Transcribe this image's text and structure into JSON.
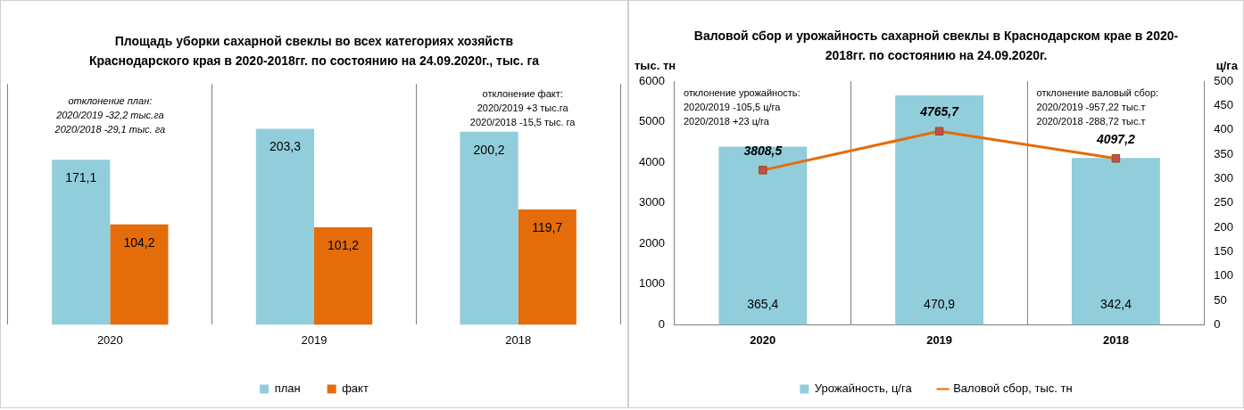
{
  "chart_data": [
    {
      "type": "bar",
      "title": "Площадь уборки сахарной свеклы во всех категориях хозяйств Краснодарского края в 2020-2018гг. по состоянию на 24.09.2020г., тыс. га",
      "categories": [
        "2020",
        "2019",
        "2018"
      ],
      "series": [
        {
          "name": "план",
          "color": "#92cddc",
          "values": [
            171.1,
            203.3,
            200.2
          ],
          "value_labels": [
            "171,1",
            "203,3",
            "200,2"
          ]
        },
        {
          "name": "факт",
          "color": "#e46c0a",
          "values": [
            104.2,
            101.2,
            119.7
          ],
          "value_labels": [
            "104,2",
            "101,2",
            "119,7"
          ]
        }
      ],
      "grid": "x",
      "legend": "bottom",
      "tick_labels": "x",
      "annotations": [
        "отклонение план:\n2020/2019 -32,2 тыс.га\n2020/2018 -29,1 тыс. га",
        "отклонение факт:\n2020/2019 +3 тыс.га\n2020/2018 -15,5 тыс. га"
      ]
    },
    {
      "type": "bar",
      "title": "Валовой сбор и урожайность сахарной свеклы в Краснодарском крае в 2020-2018гг. по состоянию на 24.09.2020г.",
      "categories": [
        "2020",
        "2019",
        "2018"
      ],
      "series": [
        {
          "name": "Урожайность, ц/га",
          "color": "#92cddc",
          "axis": "y2",
          "values": [
            365.4,
            470.9,
            342.4
          ],
          "value_labels": [
            "365,4",
            "470,9",
            "342,4"
          ]
        },
        {
          "name": "Валовой сбор, тыс. тн",
          "type": "line",
          "color": "#e46c0a",
          "axis": "y",
          "values": [
            3808.5,
            4765.7,
            4097.2
          ],
          "value_labels": [
            "3808,5",
            "4765,7",
            "4097,2"
          ]
        }
      ],
      "ylabel": "тыс. тн",
      "y2label": "ц/га",
      "ylim": [
        0,
        6000
      ],
      "yticks": [
        0,
        1000,
        2000,
        3000,
        4000,
        5000,
        6000
      ],
      "y2lim": [
        0,
        500
      ],
      "y2ticks": [
        0,
        50,
        100,
        150,
        200,
        250,
        300,
        350,
        400,
        450,
        500
      ],
      "grid": "x",
      "legend": "bottom",
      "marker": "square",
      "line_style": "solid",
      "annotations": [
        "отклонение урожайность:\n2020/2019 -105,5 ц/га\n2020/2018 +23 ц/га",
        "отклонение валовый сбор:\n2020/2019 -957,22 тыс.т\n2020/2018 -288,72 тыс.т"
      ]
    }
  ]
}
